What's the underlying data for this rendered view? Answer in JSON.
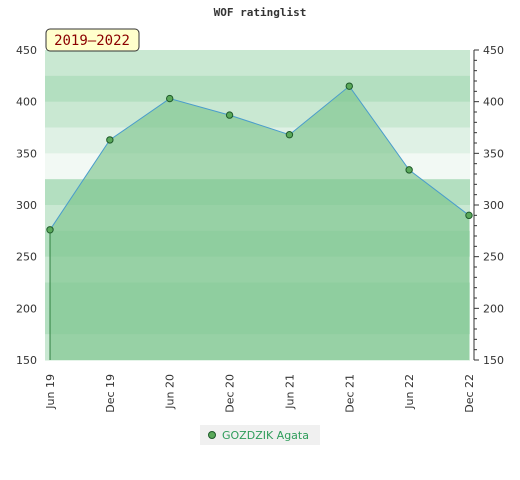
{
  "chart_data": {
    "type": "area",
    "title": "WOF ratinglist",
    "period_label": "2019–2022",
    "categories": [
      "Jun 19",
      "Dec 19",
      "Jun 20",
      "Dec 20",
      "Jun 21",
      "Dec 21",
      "Jun 22",
      "Dec 22"
    ],
    "series": [
      {
        "name": "GOZDZIK Agata",
        "values": [
          276,
          363,
          403,
          387,
          368,
          415,
          334,
          290
        ]
      }
    ],
    "ylim": [
      150,
      450
    ],
    "yticks": [
      150,
      200,
      250,
      300,
      350,
      400,
      450
    ],
    "grid": true,
    "legend": "bottom-center",
    "colors": {
      "fill": "#7cc48d",
      "line": "#4a9ccc",
      "marker": "#5aa95a",
      "marker_stroke": "#1e5a2a",
      "legend_text": "#2e9c5a",
      "period_box": "#ffffcc",
      "period_text": "#8b0000"
    }
  }
}
